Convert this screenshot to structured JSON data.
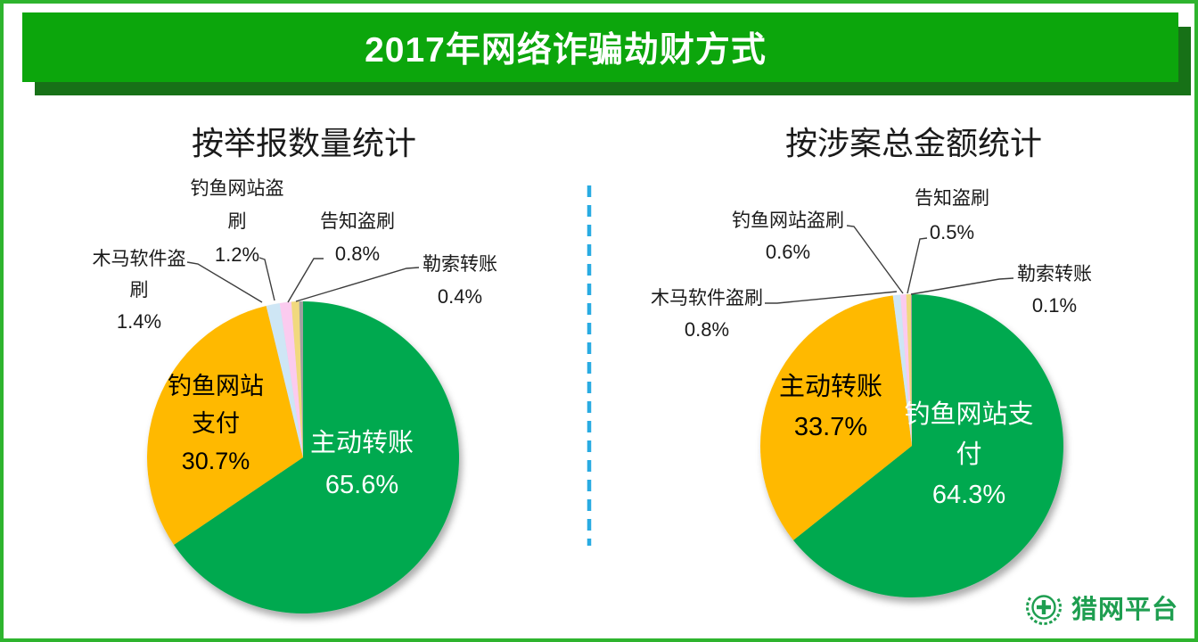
{
  "page": {
    "background": "#FFFFFF",
    "frame_border_color": "#2EB42E"
  },
  "header": {
    "title": "2017年网络诈骗劫财方式",
    "banner_color": "#0CA60C",
    "banner_shadow_color": "#177117",
    "title_color": "#FFFFFF"
  },
  "divider": {
    "color": "#29ABE2",
    "style": "dashed-vertical"
  },
  "logo": {
    "text": "猎网平台",
    "color": "#1E9E50",
    "emblem": "wreath-cross-icon"
  },
  "chart_data": [
    {
      "type": "pie",
      "title": "按举报数量统计",
      "unit": "%",
      "start_angle_deg": 0,
      "direction": "clockwise",
      "slices": [
        {
          "label": "主动转账",
          "value": 65.6,
          "color": "#00A94F",
          "label_placement": "inside",
          "label_color": "#FFFFFF"
        },
        {
          "label": "钓鱼网站支付",
          "value": 30.7,
          "color": "#FFB900",
          "label_placement": "inside",
          "label_color": "#000000"
        },
        {
          "label": "木马软件盗刷",
          "value": 1.4,
          "color": "#CEE6F5",
          "label_placement": "outside",
          "label_color": "#1A1A1A"
        },
        {
          "label": "钓鱼网站盗刷",
          "value": 1.2,
          "color": "#FBCBEF",
          "label_placement": "outside",
          "label_color": "#1A1A1A"
        },
        {
          "label": "告知盗刷",
          "value": 0.8,
          "color": "#F1D97E",
          "label_placement": "outside",
          "label_color": "#1A1A1A"
        },
        {
          "label": "勒索转账",
          "value": 0.4,
          "color": "#A0A0A0",
          "label_placement": "outside",
          "label_color": "#1A1A1A"
        }
      ]
    },
    {
      "type": "pie",
      "title": "按涉案总金额统计",
      "unit": "%",
      "start_angle_deg": 0,
      "direction": "clockwise",
      "slices": [
        {
          "label": "钓鱼网站支付",
          "value": 64.3,
          "color": "#00A94F",
          "label_placement": "inside",
          "label_color": "#FFFFFF"
        },
        {
          "label": "主动转账",
          "value": 33.7,
          "color": "#FFB900",
          "label_placement": "inside",
          "label_color": "#000000"
        },
        {
          "label": "木马软件盗刷",
          "value": 0.8,
          "color": "#CEE6F5",
          "label_placement": "outside",
          "label_color": "#1A1A1A"
        },
        {
          "label": "钓鱼网站盗刷",
          "value": 0.6,
          "color": "#FBCBEF",
          "label_placement": "outside",
          "label_color": "#1A1A1A"
        },
        {
          "label": "告知盗刷",
          "value": 0.5,
          "color": "#F1D97E",
          "label_placement": "outside",
          "label_color": "#1A1A1A"
        },
        {
          "label": "勒索转账",
          "value": 0.1,
          "color": "#A0A0A0",
          "label_placement": "outside",
          "label_color": "#1A1A1A"
        }
      ]
    }
  ]
}
